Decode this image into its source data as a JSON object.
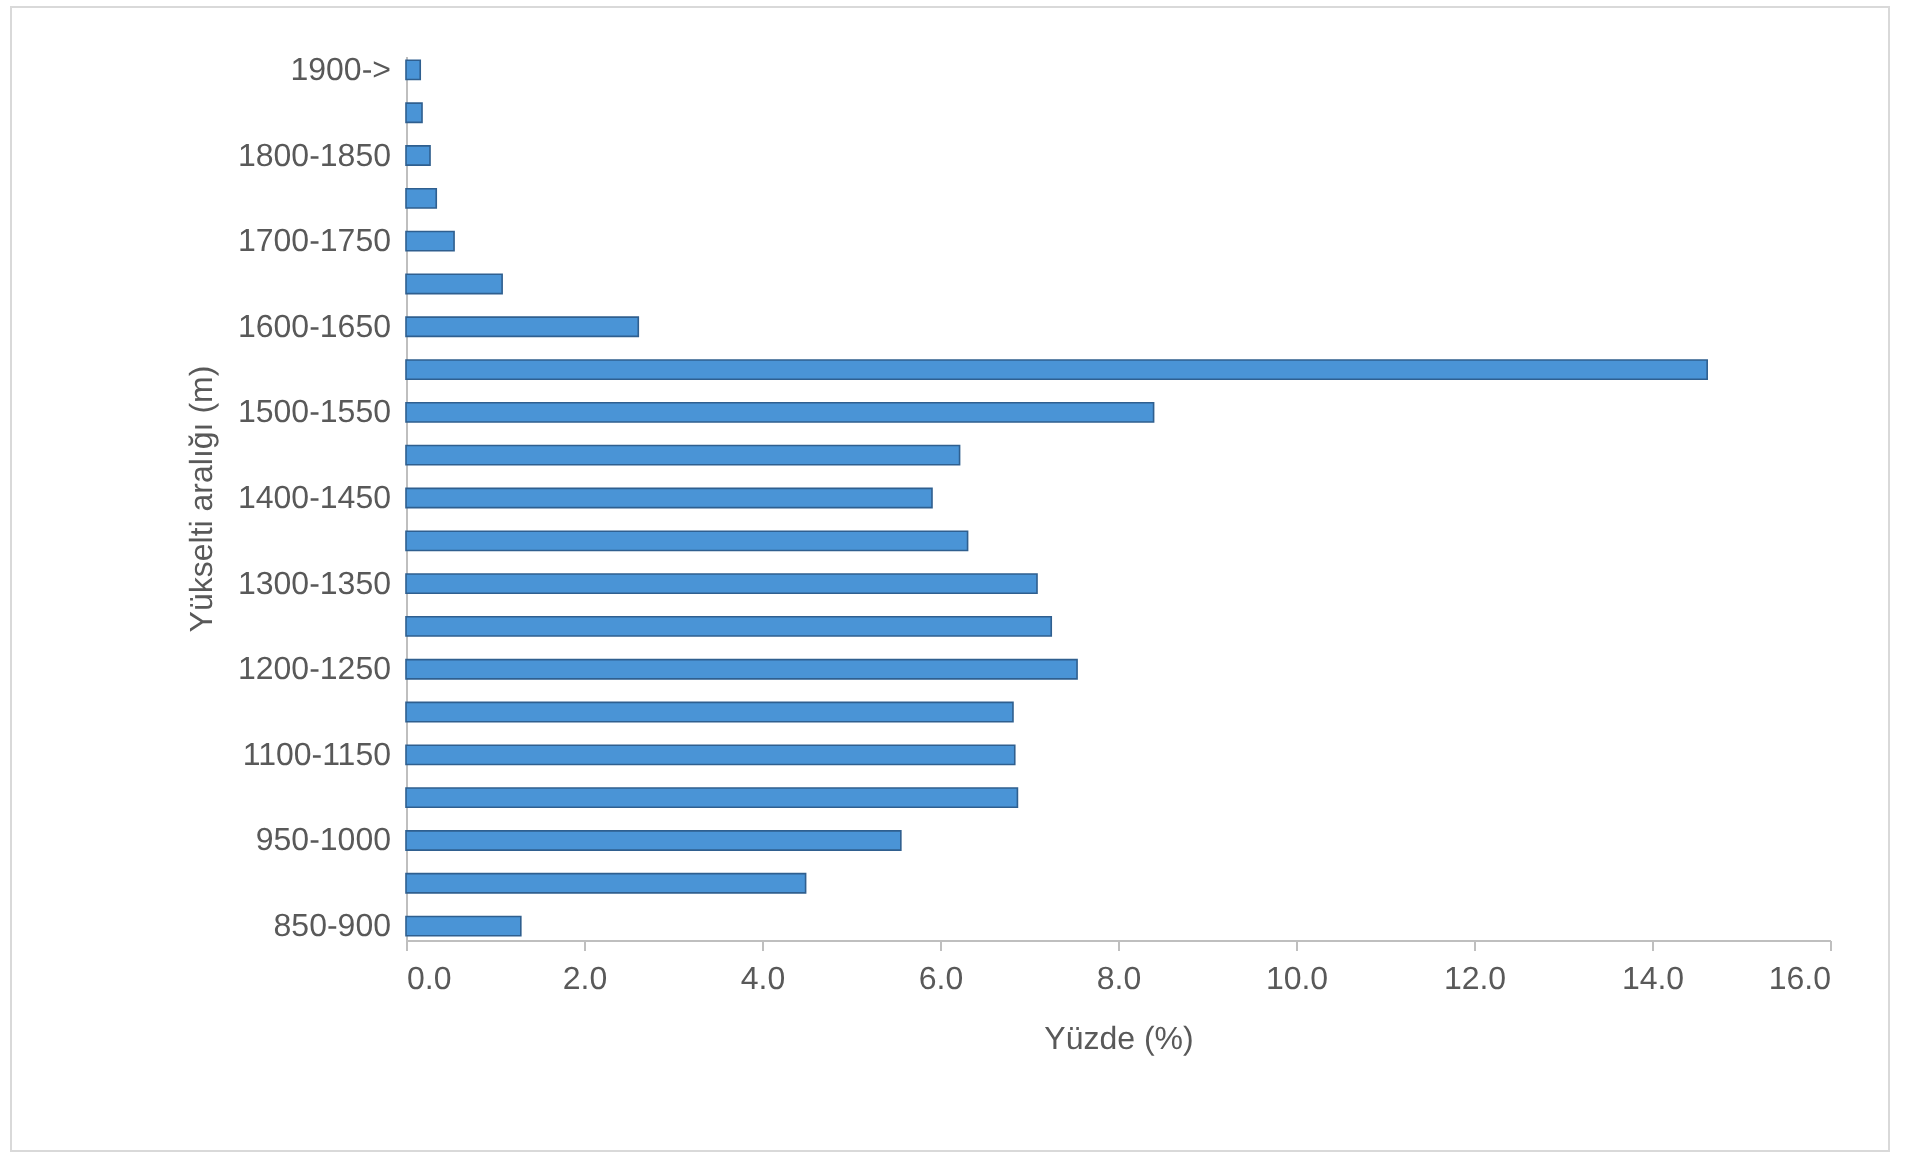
{
  "chart_data": {
    "type": "bar",
    "orientation": "horizontal",
    "xlabel": "Yüzde (%)",
    "ylabel": "Yükselti aralığı (m)",
    "categories": [
      "1900->",
      null,
      "1800-1850",
      null,
      "1700-1750",
      null,
      "1600-1650",
      null,
      "1500-1550",
      null,
      "1400-1450",
      null,
      "1300-1350",
      null,
      "1200-1250",
      null,
      "1100-1150",
      null,
      "950-1000",
      null,
      "850-900"
    ],
    "values": [
      0.16,
      0.18,
      0.27,
      0.34,
      0.54,
      1.08,
      2.61,
      14.62,
      8.4,
      6.22,
      5.91,
      6.31,
      7.09,
      7.25,
      7.54,
      6.82,
      6.84,
      6.87,
      5.56,
      4.49,
      1.29
    ],
    "color": "#4a94d6",
    "xlim": [
      0,
      16
    ],
    "xticks": [
      {
        "value": 0,
        "label": "0.0"
      },
      {
        "value": 2,
        "label": "2.0"
      },
      {
        "value": 4,
        "label": "4.0"
      },
      {
        "value": 6,
        "label": "6.0"
      },
      {
        "value": 8,
        "label": "8.0"
      },
      {
        "value": 10,
        "label": "10.0"
      },
      {
        "value": 12,
        "label": "12.0"
      },
      {
        "value": 14,
        "label": "14.0"
      },
      {
        "value": 16,
        "label": "16.0"
      }
    ],
    "grid": false
  }
}
